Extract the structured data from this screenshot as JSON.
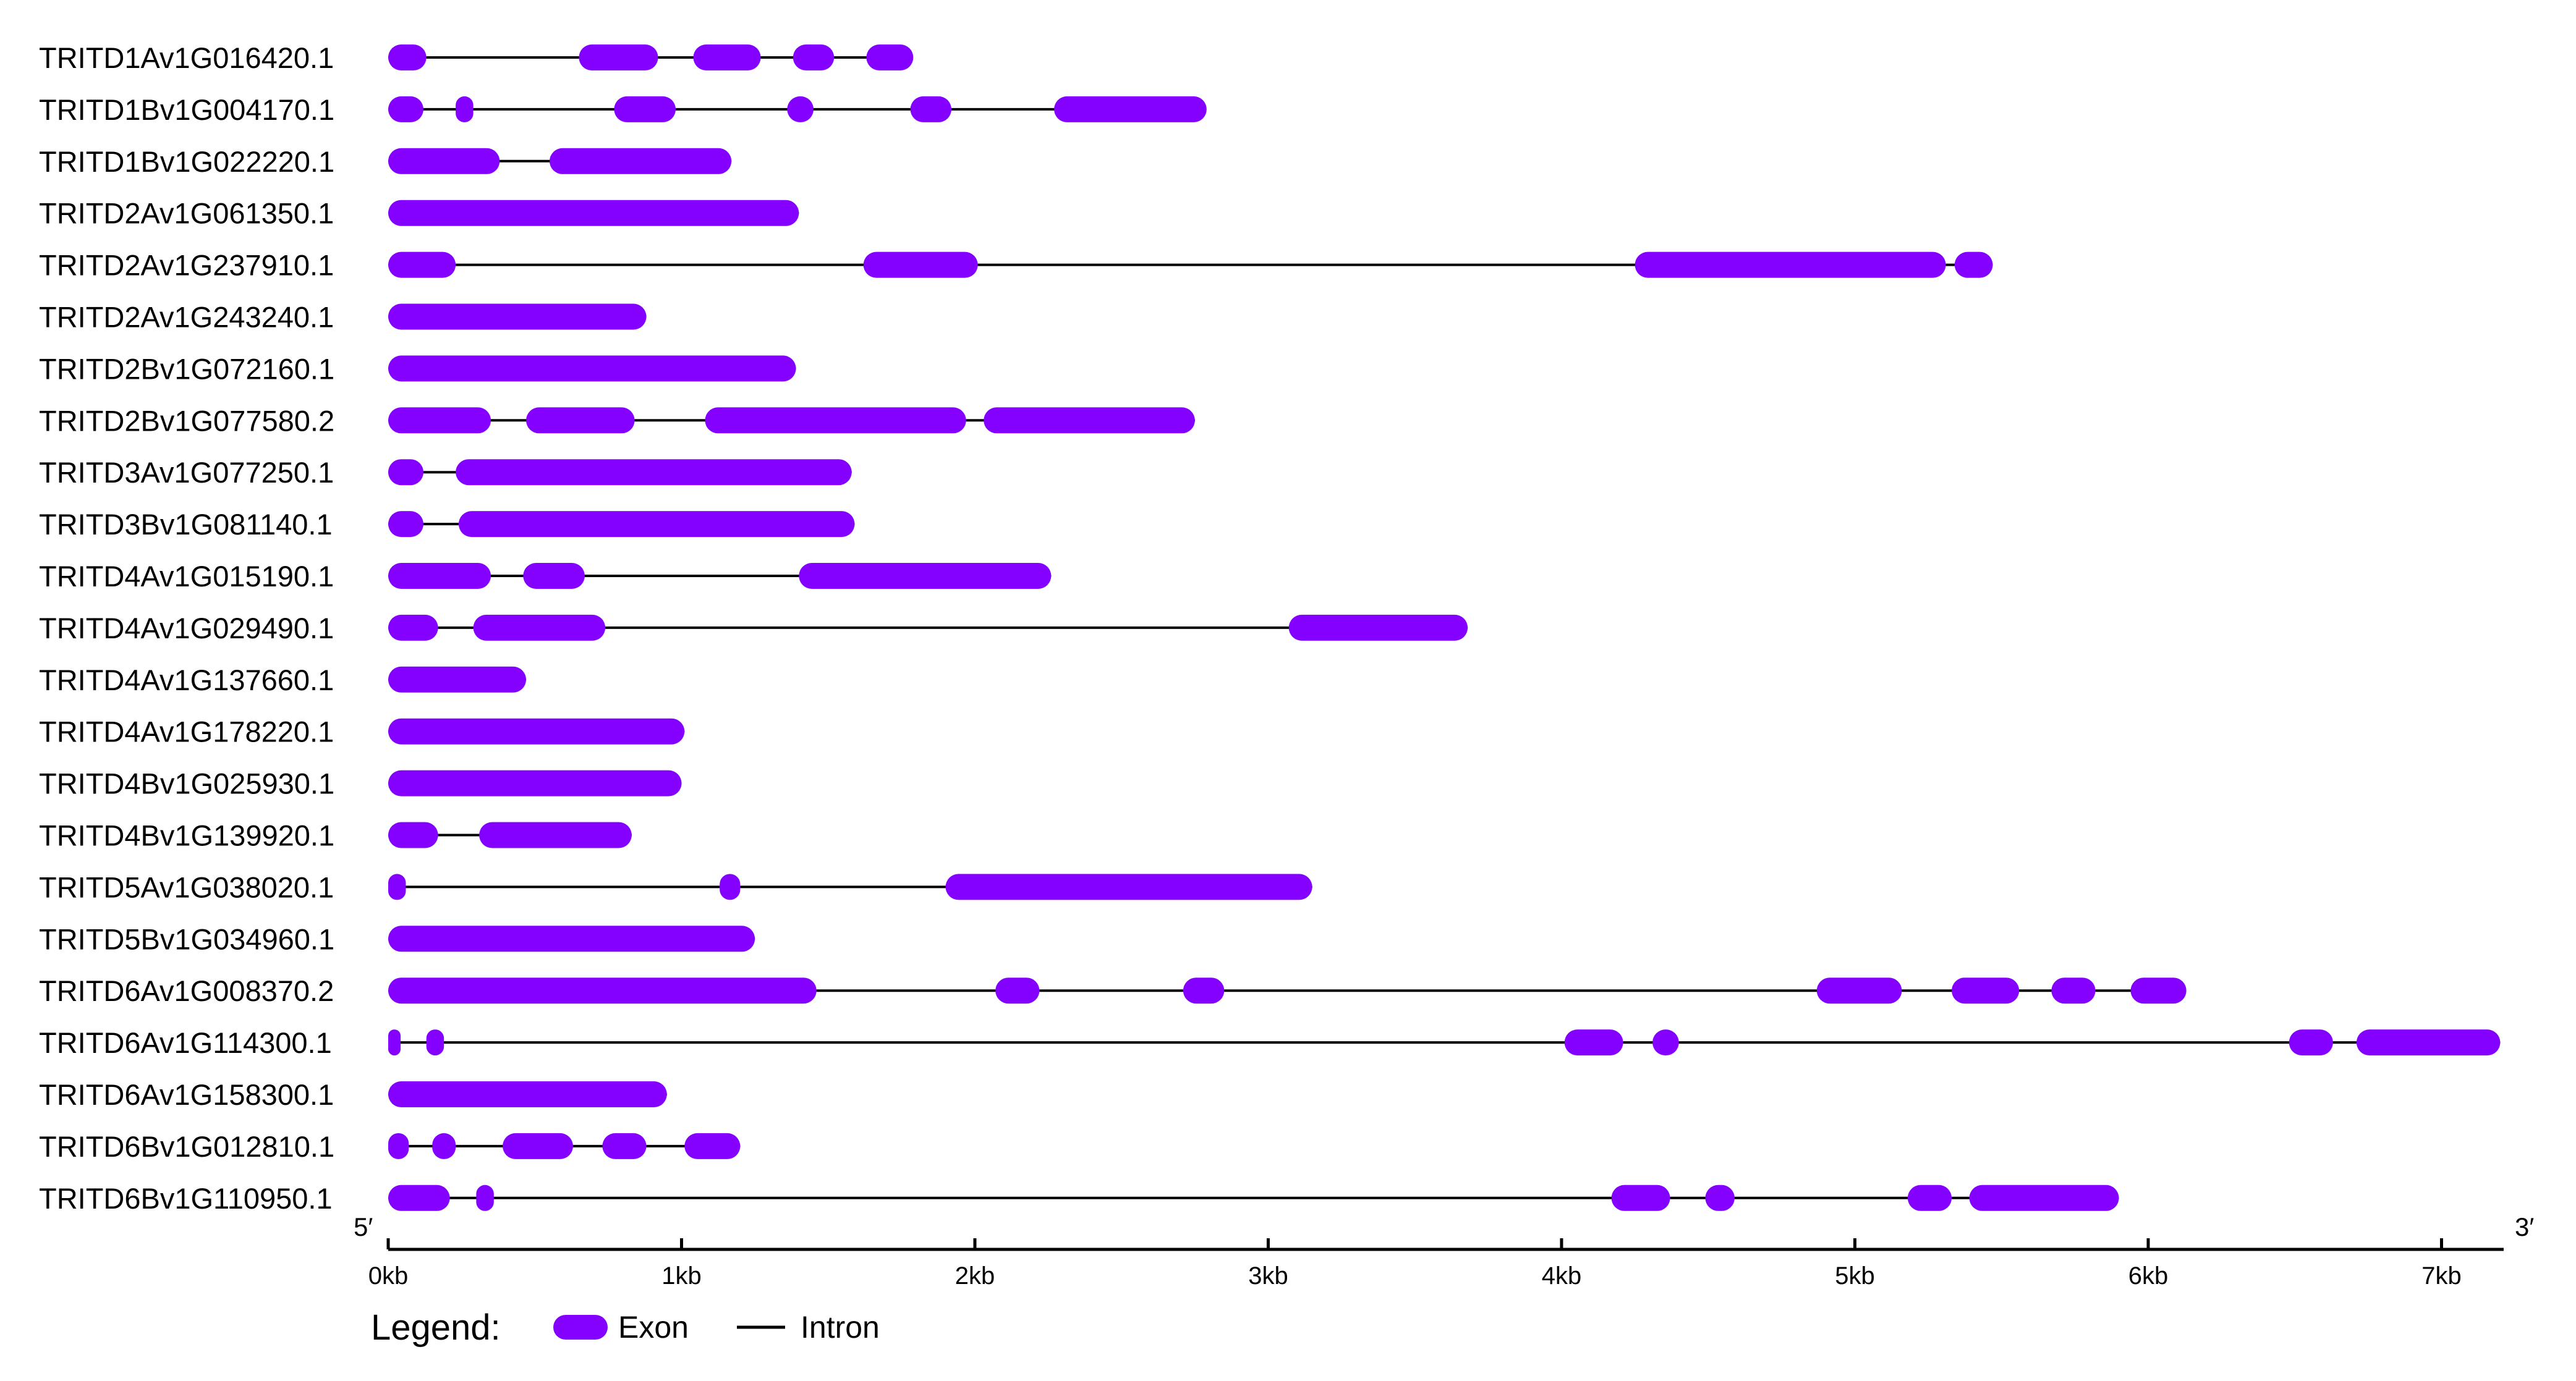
{
  "colors": {
    "exon": "#8400ff",
    "intron": "#000000",
    "text": "#000000"
  },
  "axis": {
    "unit": "kb",
    "range_kb": [
      0,
      7.15
    ],
    "ticks": [
      {
        "value": 0,
        "label": "0kb"
      },
      {
        "value": 1,
        "label": "1kb"
      },
      {
        "value": 2,
        "label": "2kb"
      },
      {
        "value": 3,
        "label": "3kb"
      },
      {
        "value": 4,
        "label": "4kb"
      },
      {
        "value": 5,
        "label": "5kb"
      },
      {
        "value": 6,
        "label": "6kb"
      },
      {
        "value": 7,
        "label": "7kb"
      }
    ],
    "left_end_label": "5′",
    "right_end_label": "3′"
  },
  "legend": {
    "title": "Legend:",
    "exon_label": "Exon",
    "intron_label": "Intron"
  },
  "genes": [
    {
      "name": "TRITD1Av1G016420.1",
      "length_kb": 1.78,
      "exons": [
        [
          0,
          0.13
        ],
        [
          0.65,
          0.92
        ],
        [
          1.04,
          1.27
        ],
        [
          1.38,
          1.52
        ],
        [
          1.63,
          1.79
        ]
      ]
    },
    {
      "name": "TRITD1Bv1G004170.1",
      "length_kb": 2.78,
      "exons": [
        [
          0,
          0.12
        ],
        [
          0.23,
          0.29
        ],
        [
          0.77,
          0.98
        ],
        [
          1.36,
          1.45
        ],
        [
          1.78,
          1.92
        ],
        [
          2.27,
          2.79
        ]
      ]
    },
    {
      "name": "TRITD1Bv1G022220.1",
      "length_kb": 1.17,
      "exons": [
        [
          0,
          0.38
        ],
        [
          0.55,
          1.17
        ]
      ]
    },
    {
      "name": "TRITD2Av1G061350.1",
      "length_kb": 1.4,
      "exons": [
        [
          0,
          1.4
        ]
      ]
    },
    {
      "name": "TRITD2Av1G237910.1",
      "length_kb": 5.47,
      "exons": [
        [
          0,
          0.23
        ],
        [
          1.62,
          2.01
        ],
        [
          4.25,
          5.31
        ],
        [
          5.34,
          5.47
        ]
      ]
    },
    {
      "name": "TRITD2Av1G243240.1",
      "length_kb": 0.88,
      "exons": [
        [
          0,
          0.88
        ]
      ]
    },
    {
      "name": "TRITD2Bv1G072160.1",
      "length_kb": 1.39,
      "exons": [
        [
          0,
          1.39
        ]
      ]
    },
    {
      "name": "TRITD2Bv1G077580.2",
      "length_kb": 2.75,
      "exons": [
        [
          0,
          0.35
        ],
        [
          0.47,
          0.84
        ],
        [
          1.08,
          1.97
        ],
        [
          2.03,
          2.75
        ]
      ]
    },
    {
      "name": "TRITD3Av1G077250.1",
      "length_kb": 1.58,
      "exons": [
        [
          0,
          0.12
        ],
        [
          0.23,
          1.58
        ]
      ]
    },
    {
      "name": "TRITD3Bv1G081140.1",
      "length_kb": 1.59,
      "exons": [
        [
          0,
          0.12
        ],
        [
          0.24,
          1.59
        ]
      ]
    },
    {
      "name": "TRITD4Av1G015190.1",
      "length_kb": 2.26,
      "exons": [
        [
          0,
          0.35
        ],
        [
          0.46,
          0.67
        ],
        [
          1.4,
          2.26
        ]
      ]
    },
    {
      "name": "TRITD4Av1G029490.1",
      "length_kb": 3.68,
      "exons": [
        [
          0,
          0.17
        ],
        [
          0.29,
          0.74
        ],
        [
          3.07,
          3.68
        ]
      ]
    },
    {
      "name": "TRITD4Av1G137660.1",
      "length_kb": 0.47,
      "exons": [
        [
          0,
          0.47
        ]
      ]
    },
    {
      "name": "TRITD4Av1G178220.1",
      "length_kb": 1.01,
      "exons": [
        [
          0,
          1.01
        ]
      ]
    },
    {
      "name": "TRITD4Bv1G025930.1",
      "length_kb": 1.0,
      "exons": [
        [
          0,
          1.0
        ]
      ]
    },
    {
      "name": "TRITD4Bv1G139920.1",
      "length_kb": 0.83,
      "exons": [
        [
          0,
          0.17
        ],
        [
          0.31,
          0.83
        ]
      ]
    },
    {
      "name": "TRITD5Av1G038020.1",
      "length_kb": 3.15,
      "exons": [
        [
          0,
          0.06
        ],
        [
          1.13,
          1.2
        ],
        [
          1.9,
          3.15
        ]
      ]
    },
    {
      "name": "TRITD5Bv1G034960.1",
      "length_kb": 1.25,
      "exons": [
        [
          0,
          1.25
        ]
      ]
    },
    {
      "name": "TRITD6Av1G008370.2",
      "length_kb": 6.12,
      "exons": [
        [
          0,
          1.46
        ],
        [
          2.07,
          2.22
        ],
        [
          2.71,
          2.85
        ],
        [
          4.87,
          5.16
        ],
        [
          5.33,
          5.56
        ],
        [
          5.67,
          5.82
        ],
        [
          5.94,
          6.13
        ]
      ]
    },
    {
      "name": "TRITD6Av1G114300.1",
      "length_kb": 7.2,
      "exons": [
        [
          0,
          0.04
        ],
        [
          0.13,
          0.19
        ],
        [
          4.01,
          4.21
        ],
        [
          4.31,
          4.4
        ],
        [
          6.48,
          6.63
        ],
        [
          6.71,
          7.2
        ]
      ]
    },
    {
      "name": "TRITD6Av1G158300.1",
      "length_kb": 0.95,
      "exons": [
        [
          0,
          0.95
        ]
      ]
    },
    {
      "name": "TRITD6Bv1G012810.1",
      "length_kb": 1.2,
      "exons": [
        [
          0,
          0.07
        ],
        [
          0.15,
          0.23
        ],
        [
          0.39,
          0.63
        ],
        [
          0.73,
          0.88
        ],
        [
          1.01,
          1.2
        ]
      ]
    },
    {
      "name": "TRITD6Bv1G110950.1",
      "length_kb": 5.9,
      "exons": [
        [
          0,
          0.21
        ],
        [
          0.3,
          0.36
        ],
        [
          4.17,
          4.37
        ],
        [
          4.49,
          4.59
        ],
        [
          5.18,
          5.33
        ],
        [
          5.39,
          5.9
        ]
      ]
    }
  ]
}
